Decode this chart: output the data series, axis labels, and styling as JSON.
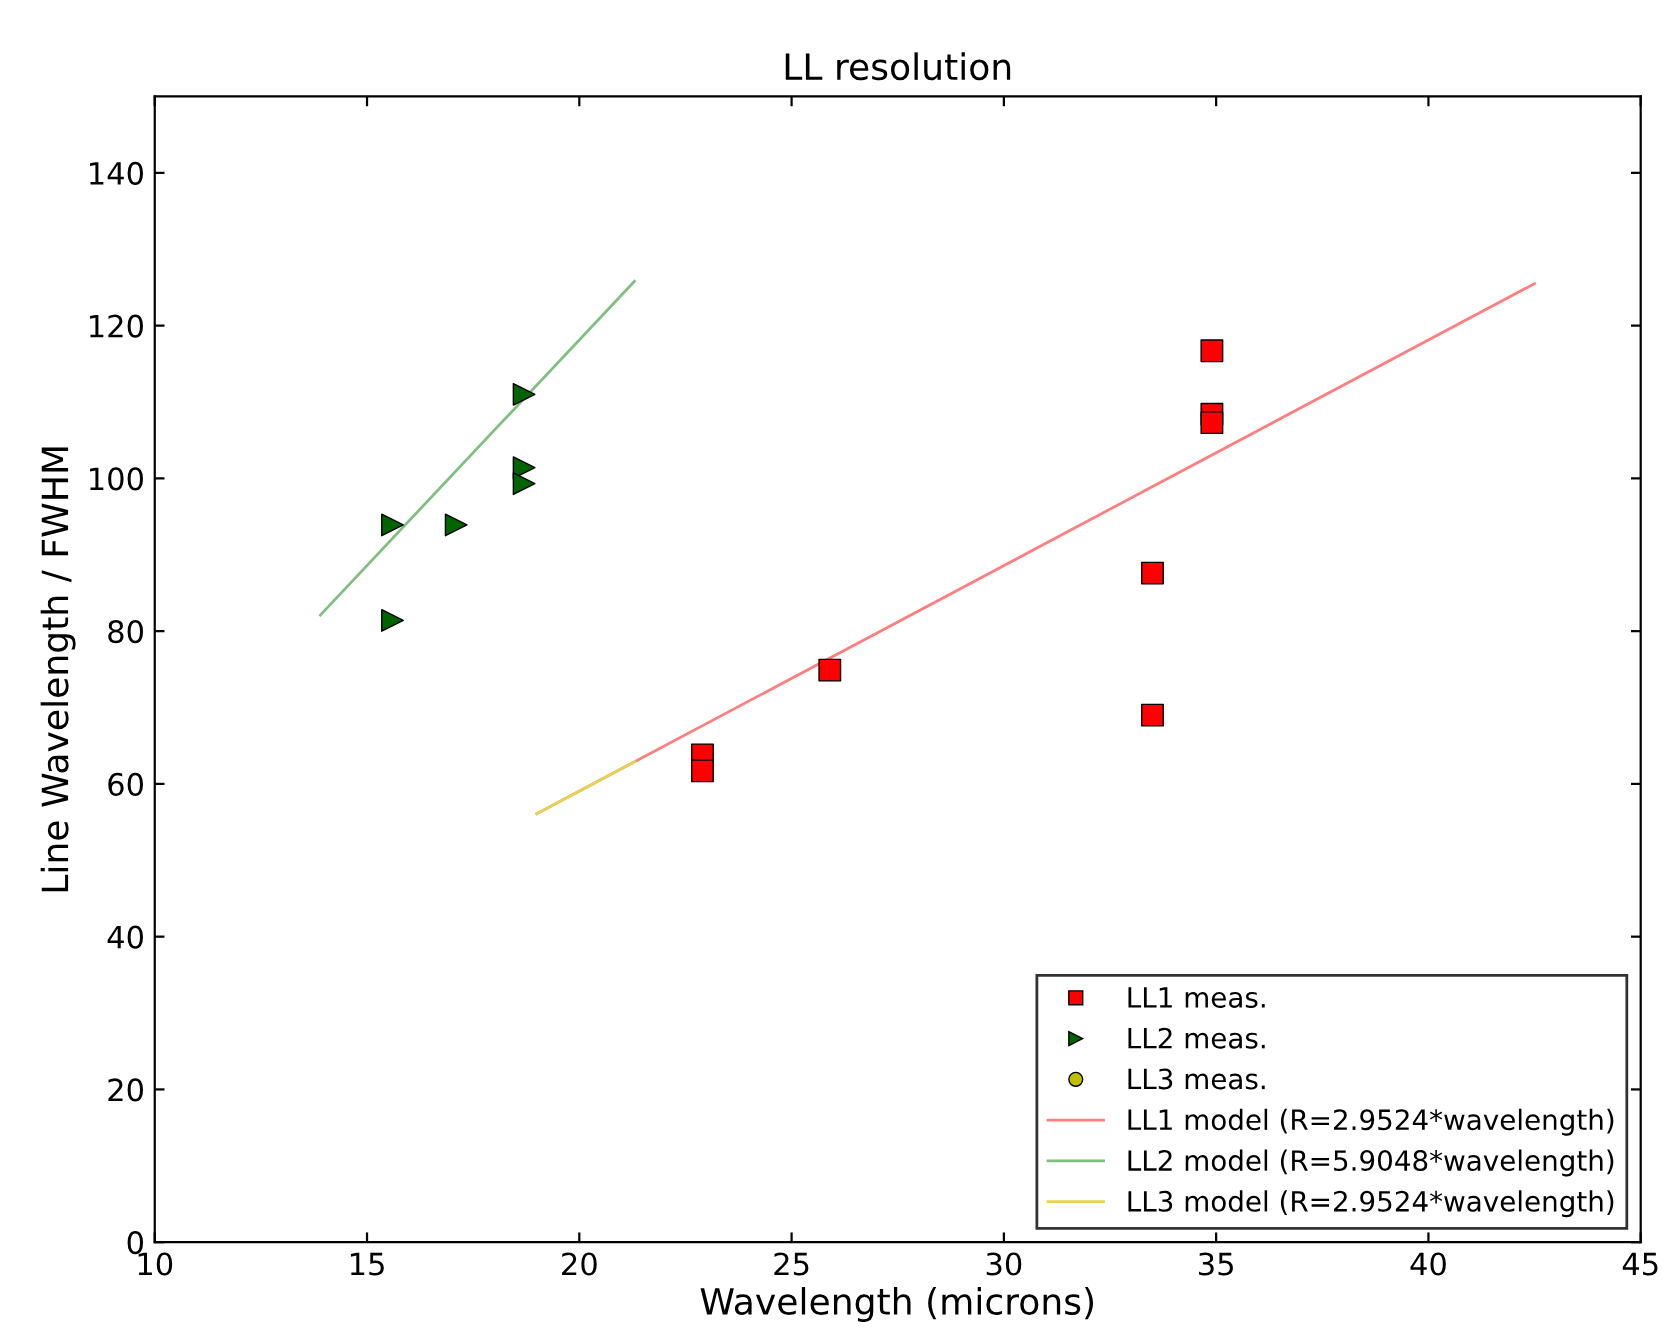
{
  "chart_data": {
    "type": "scatter",
    "title": "LL resolution",
    "xlabel": "Wavelength (microns)",
    "ylabel": "Line Wavelength / FWHM",
    "xlim": [
      10,
      45
    ],
    "ylim": [
      0,
      150
    ],
    "xticks": [
      10,
      15,
      20,
      25,
      30,
      35,
      40,
      45
    ],
    "yticks": [
      0,
      20,
      40,
      60,
      80,
      100,
      120,
      140
    ],
    "grid": false,
    "legend": "bottom right",
    "series": [
      {
        "name": "LL1 meas.",
        "marker": "square",
        "color": "#ff0000",
        "x": [
          22.9,
          22.9,
          25.9,
          33.5,
          33.5,
          34.9,
          34.9,
          34.9
        ],
        "values": [
          63.8,
          61.7,
          74.9,
          87.6,
          69,
          116.7,
          108.4,
          107.3
        ]
      },
      {
        "name": "LL2 meas.",
        "marker": "triangle",
        "color": "#006400",
        "x": [
          15.6,
          15.6,
          17.1,
          18.7,
          18.7,
          18.7
        ],
        "values": [
          93.9,
          81.4,
          93.9,
          111,
          101.4,
          99.3
        ]
      },
      {
        "name": "LL3 meas.",
        "marker": "circle",
        "color": "#bfbf00"
      },
      {
        "name": "LL1 model (R=2.9524*wavelength)",
        "type": "line",
        "color": "#ff7f7f",
        "x": [
          19.0,
          42.5
        ],
        "values": [
          56.1,
          125.5
        ]
      },
      {
        "name": "LL2 model (R=5.9048*wavelength)",
        "type": "line",
        "color": "#7fbf7f",
        "x": [
          13.9,
          21.3
        ],
        "values": [
          82.1,
          125.8
        ]
      },
      {
        "name": "LL3 model (R=2.9524*wavelength)",
        "type": "line",
        "color": "#e6d44f",
        "x": [
          19.0,
          21.3
        ],
        "values": [
          56.1,
          62.9
        ]
      }
    ]
  }
}
